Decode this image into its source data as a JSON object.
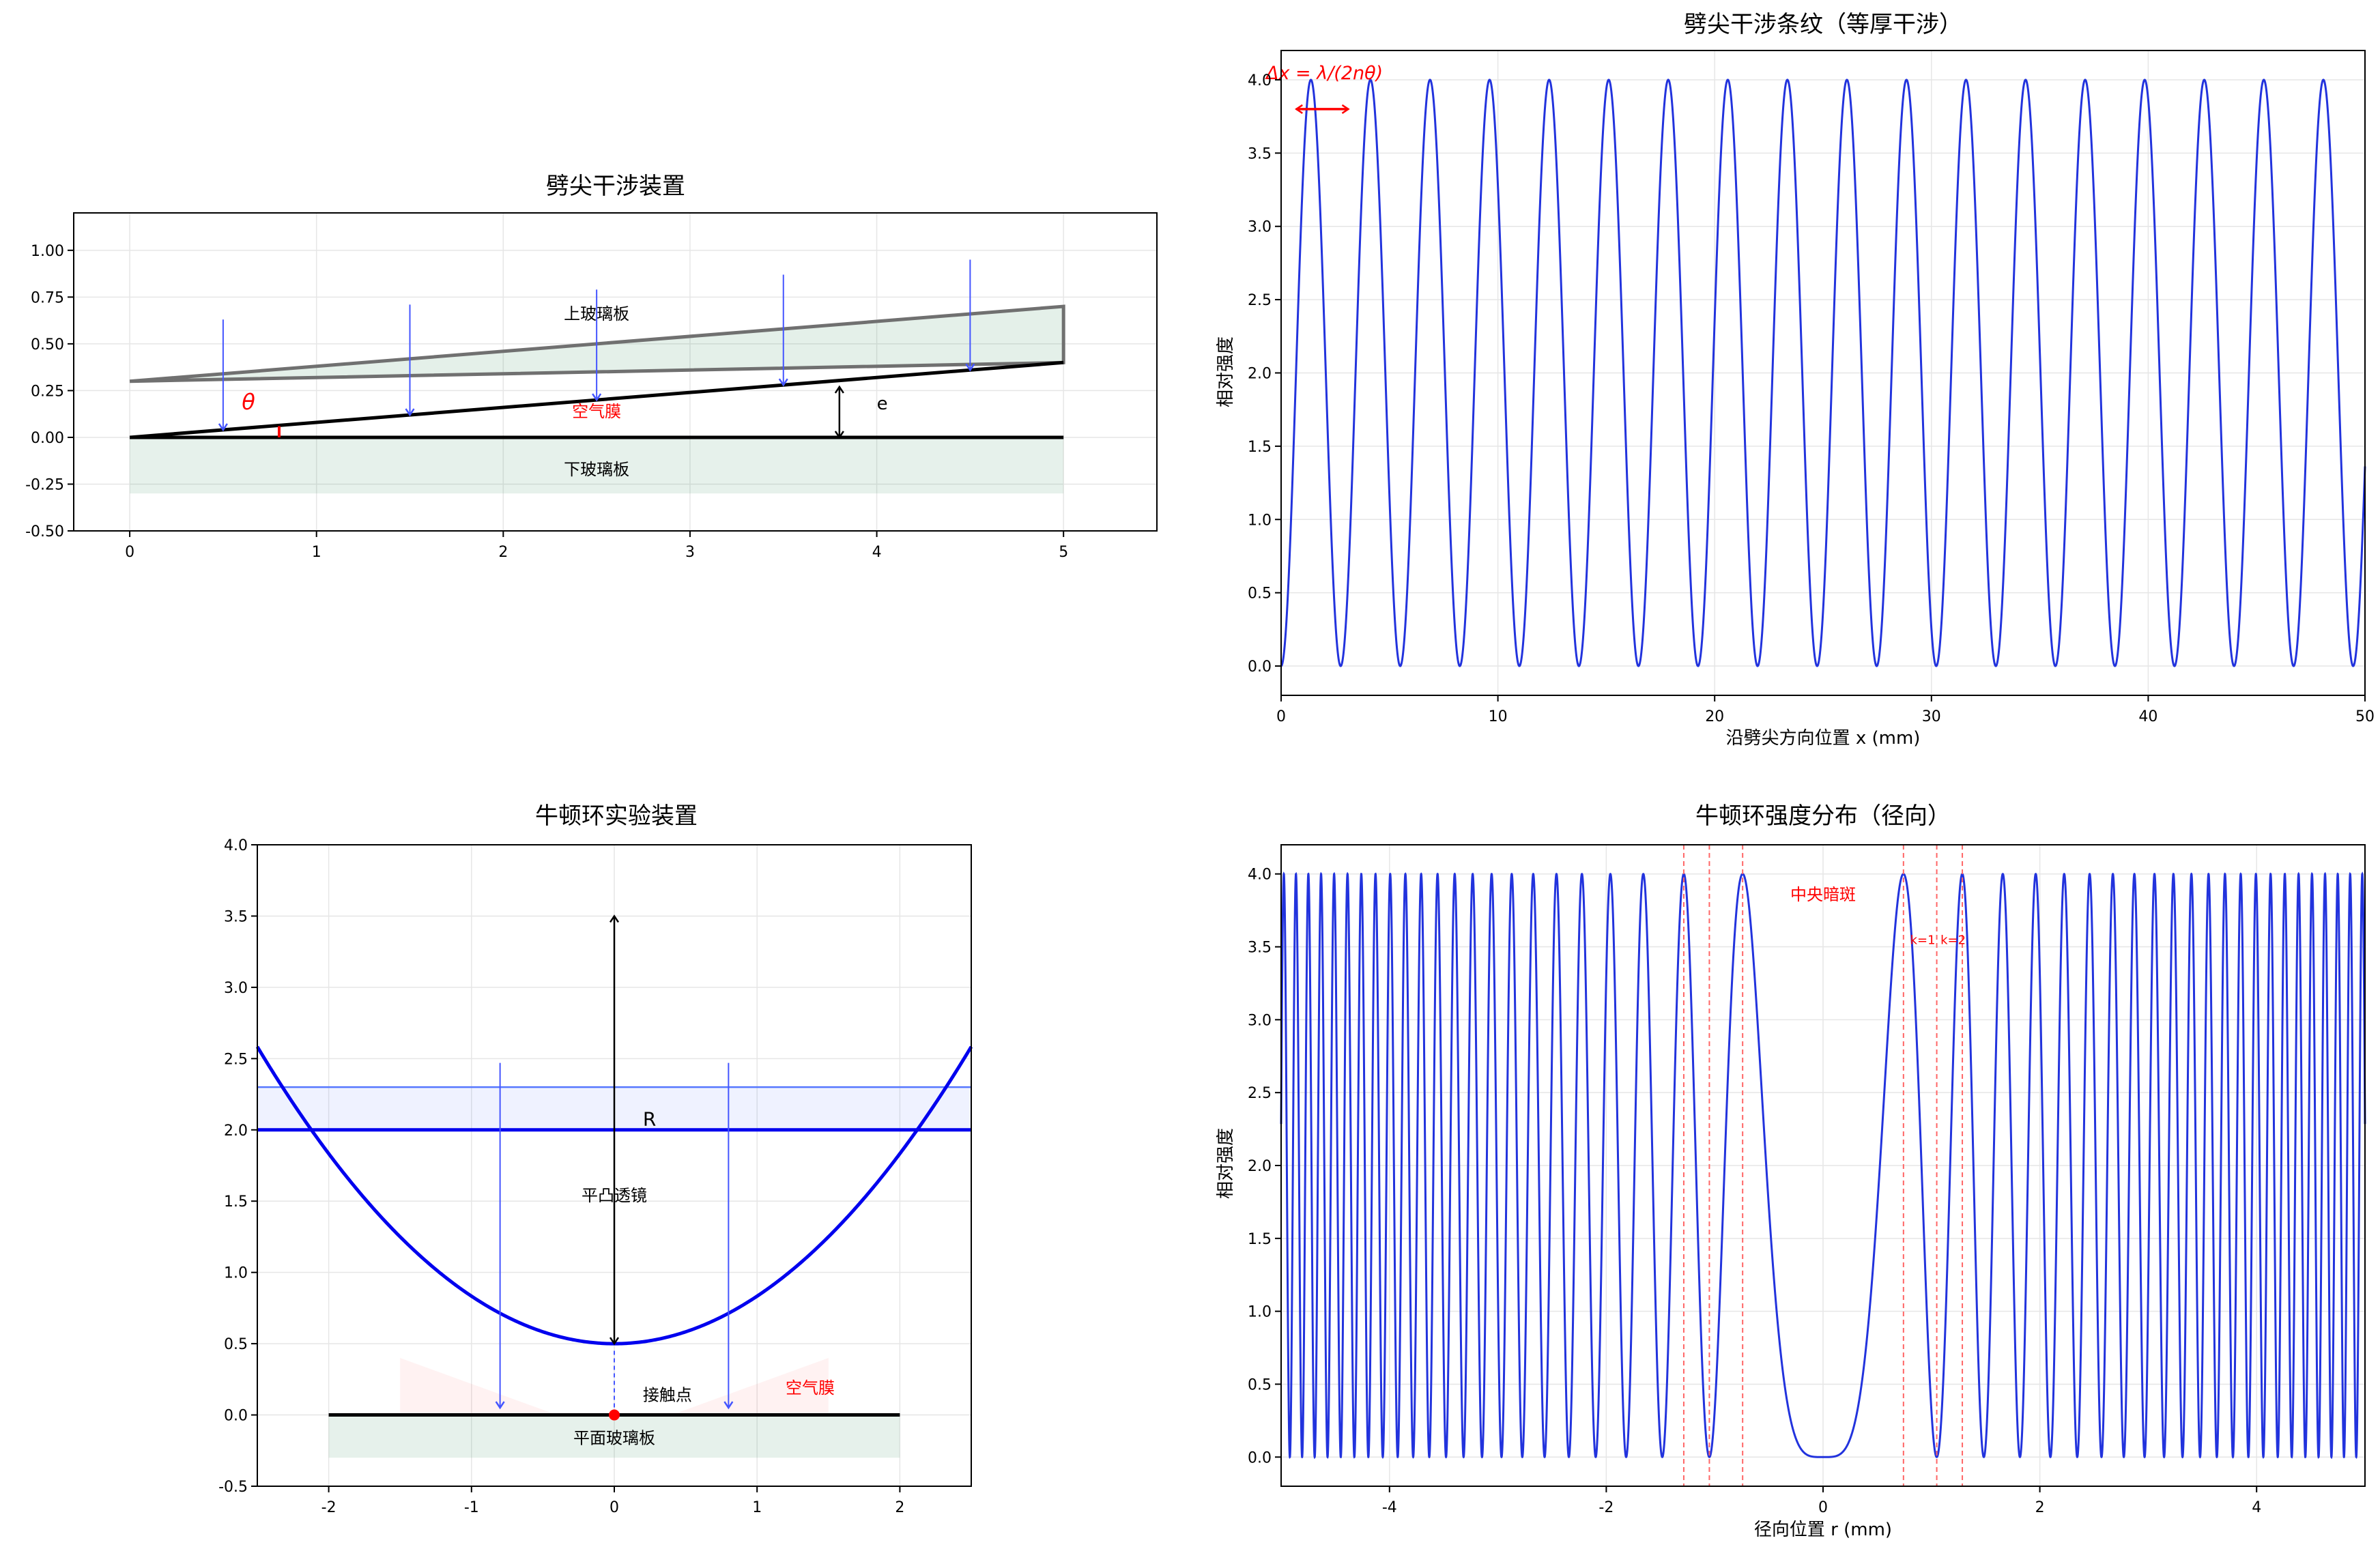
{
  "chart_data": [
    {
      "type": "diagram",
      "title": "劈尖干涉装置",
      "xlim": [
        -0.3,
        5.5
      ],
      "ylim": [
        -0.5,
        1.2
      ],
      "xticks": [
        "0",
        "1",
        "2",
        "3",
        "4",
        "5"
      ],
      "yticks": [
        "-0.50",
        "-0.25",
        "0.00",
        "0.25",
        "0.50",
        "0.75",
        "1.00"
      ],
      "grid": true,
      "upper_glass": {
        "label": "上玻璃板",
        "color": "#2e8b57",
        "points": [
          [
            0,
            0.3
          ],
          [
            5,
            0.7
          ],
          [
            5,
            0.4
          ]
        ]
      },
      "lower_glass": {
        "label": "下玻璃板",
        "color": "#2e8b57",
        "x": [
          0,
          5
        ],
        "y": [
          -0.3,
          0
        ]
      },
      "air_film": {
        "label": "空气膜",
        "color": "#ff0000"
      },
      "wedge_line": {
        "x": [
          0,
          5
        ],
        "y": [
          0,
          0.4
        ]
      },
      "base_line": {
        "x": [
          0,
          5
        ],
        "y": [
          0,
          0
        ]
      },
      "angle_label": "θ",
      "thickness_label": "e",
      "thickness_arrow": {
        "x": 3.8,
        "y": [
          0,
          0.27
        ]
      },
      "light_rays": [
        {
          "x": 0.5,
          "y0": 0.63,
          "y1": 0.04
        },
        {
          "x": 1.5,
          "y0": 0.71,
          "y1": 0.12
        },
        {
          "x": 2.5,
          "y0": 0.79,
          "y1": 0.2
        },
        {
          "x": 3.5,
          "y0": 0.87,
          "y1": 0.28
        },
        {
          "x": 4.5,
          "y0": 0.95,
          "y1": 0.36
        }
      ],
      "ray_color": "#4455ff"
    },
    {
      "type": "line",
      "title": "劈尖干涉条纹（等厚干涉）",
      "xlabel": "沿劈尖方向位置 x (mm)",
      "ylabel": "相对强度",
      "xlim": [
        0,
        50
      ],
      "ylim": [
        -0.2,
        4.2
      ],
      "xticks": [
        "0",
        "10",
        "20",
        "30",
        "40",
        "50"
      ],
      "yticks": [
        "0.0",
        "0.5",
        "1.0",
        "1.5",
        "2.0",
        "2.5",
        "3.0",
        "3.5",
        "4.0"
      ],
      "grid": true,
      "series": [
        {
          "formula": "I = 4·sin²(π·x/2.7475)",
          "period": 2.7475,
          "amplitude": 4,
          "color": "#2233dd"
        }
      ],
      "annotation": {
        "text": "Δx = λ/(2nθ)",
        "color": "#ff0000",
        "arrow_x": [
          0.7,
          3.1
        ],
        "y": 3.8
      }
    },
    {
      "type": "diagram",
      "title": "牛顿环实验装置",
      "xlim": [
        -2.5,
        2.5
      ],
      "ylim": [
        -0.5,
        4.0
      ],
      "xticks": [
        "-2",
        "-1",
        "0",
        "1",
        "2"
      ],
      "yticks": [
        "-0.5",
        "0.0",
        "0.5",
        "1.0",
        "1.5",
        "2.0",
        "2.5",
        "3.0",
        "3.5",
        "4.0"
      ],
      "grid": true,
      "lens": {
        "label": "平凸透镜",
        "color": "#0000ee",
        "flat_y": 2.0,
        "bottom_y": 0.5,
        "curvature": 0.3333,
        "fill_top_y": 2.3
      },
      "radius_label": "R",
      "radius_arrow": {
        "x": 0,
        "y": [
          0.5,
          3.5
        ]
      },
      "flat_glass": {
        "label": "平面玻璃板",
        "color": "#2e8b57",
        "x": [
          -2,
          2
        ],
        "y": [
          -0.3,
          0
        ]
      },
      "contact_point": {
        "label": "接触点",
        "x": 0,
        "y": 0,
        "color": "#ff0000"
      },
      "air_film": {
        "label": "空气膜",
        "color": "#ff0000"
      },
      "light_rays": [
        {
          "x": -0.8,
          "y0": 2.47,
          "y1": 0.05
        },
        {
          "x": 0.8,
          "y0": 2.47,
          "y1": 0.05
        }
      ],
      "ray_color": "#4455ff"
    },
    {
      "type": "line",
      "title": "牛顿环强度分布（径向）",
      "xlabel": "径向位置 r (mm)",
      "ylabel": "相对强度",
      "xlim": [
        -5,
        5
      ],
      "ylim": [
        -0.2,
        4.2
      ],
      "xticks": [
        "-4",
        "-2",
        "0",
        "2",
        "4"
      ],
      "yticks": [
        "0.0",
        "0.5",
        "1.0",
        "1.5",
        "2.0",
        "2.5",
        "3.0",
        "3.5",
        "4.0"
      ],
      "grid": true,
      "series": [
        {
          "formula": "I = 4·sin²(π·r²/1.1)",
          "k": 1.1,
          "amplitude": 4,
          "color": "#2233dd"
        }
      ],
      "dark_ring_radii": [
        0.742,
        1.049,
        1.285
      ],
      "ring_line_color": "#ff6666",
      "annotations": [
        {
          "text": "中央暗斑",
          "x": 0.0,
          "y": 3.82,
          "color": "#ff0000"
        },
        {
          "text": "k=1",
          "x": 0.92,
          "y": 3.52,
          "color": "#ff0000"
        },
        {
          "text": "k=2",
          "x": 1.2,
          "y": 3.52,
          "color": "#ff0000"
        }
      ]
    }
  ]
}
